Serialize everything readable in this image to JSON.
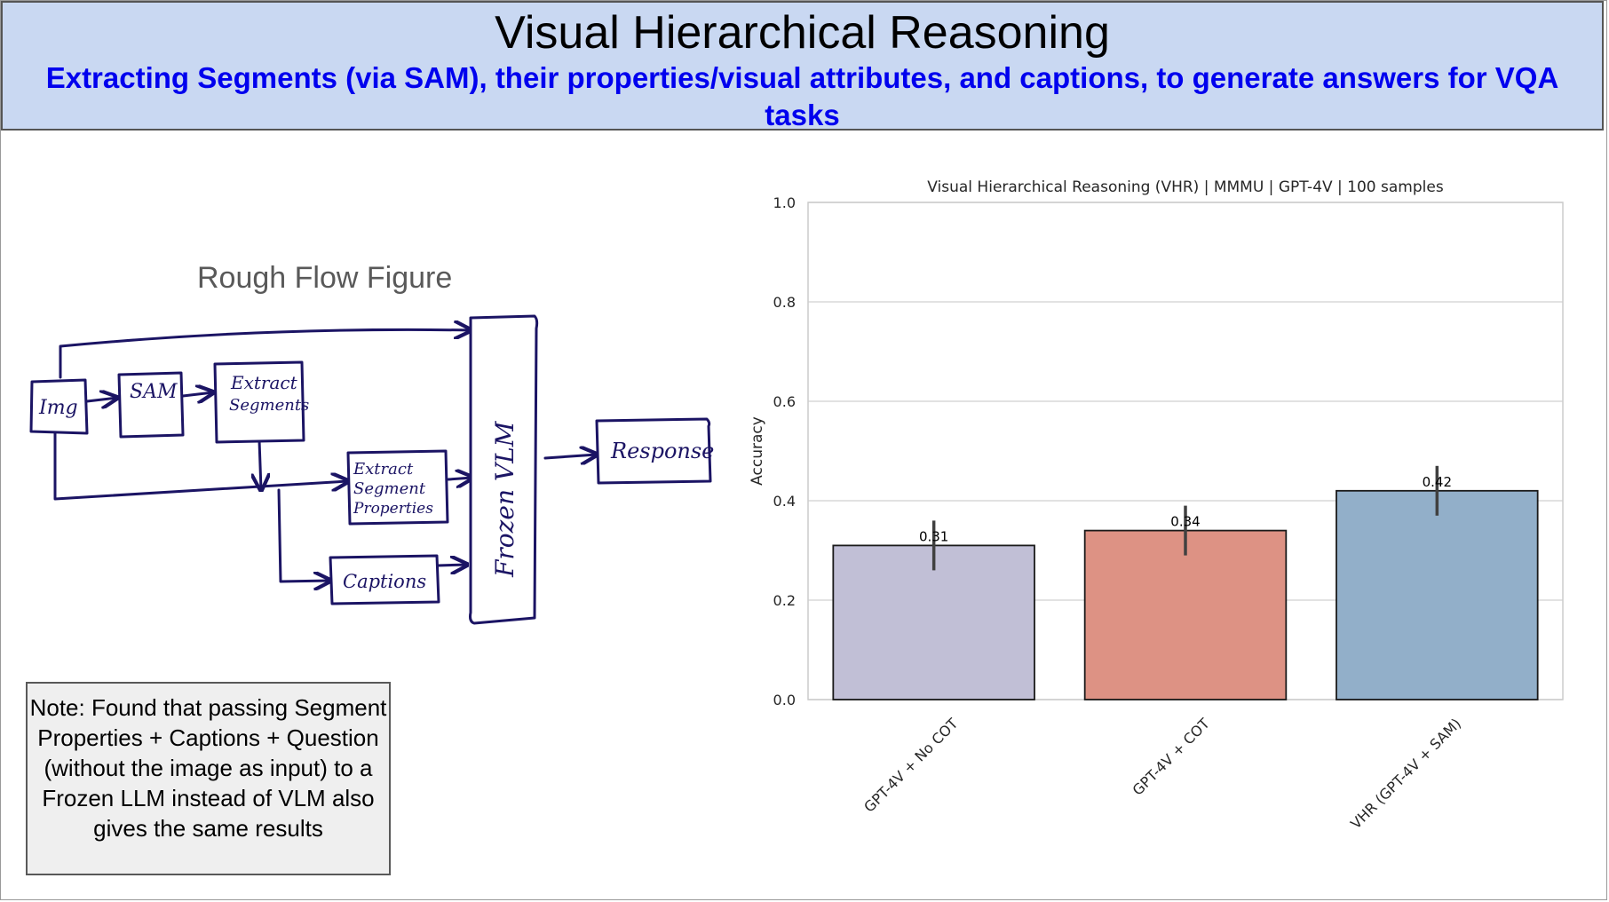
{
  "banner": {
    "title": "Visual Hierarchical Reasoning",
    "subtitle": "Extracting Segments (via SAM), their properties/visual attributes, and captions, to generate answers for VQA tasks"
  },
  "flow": {
    "heading": "Rough Flow Figure",
    "nodes": {
      "img": "Img",
      "sam": "SAM",
      "extract_segments": [
        "Extract",
        "Segments"
      ],
      "extract_properties": [
        "Extract",
        "Segment",
        "Properties"
      ],
      "captions": "Captions",
      "vlm": "Frozen VLM",
      "response": "Response"
    }
  },
  "note": {
    "text": "Note: Found that passing Segment Properties + Captions + Question (without the image as input) to a Frozen LLM instead of VLM also gives the same results"
  },
  "chart_data": {
    "type": "bar",
    "title": "Visual Hierarchical Reasoning (VHR) | MMMU | GPT-4V | 100 samples",
    "xlabel": "",
    "ylabel": "Accuracy",
    "ylim": [
      0,
      1.0
    ],
    "yticks": [
      "0.0",
      "0.2",
      "0.4",
      "0.6",
      "0.8",
      "1.0"
    ],
    "grid": true,
    "categories": [
      "GPT-4V + No COT",
      "GPT-4V + COT",
      "VHR (GPT-4V + SAM)"
    ],
    "values": [
      0.31,
      0.34,
      0.42
    ],
    "value_labels": [
      "0.31",
      "0.34",
      "0.42"
    ],
    "error_low": [
      0.26,
      0.29,
      0.37
    ],
    "error_high": [
      0.36,
      0.39,
      0.47
    ],
    "colors": [
      "#c1bfd6",
      "#dd9284",
      "#92afc9"
    ]
  }
}
